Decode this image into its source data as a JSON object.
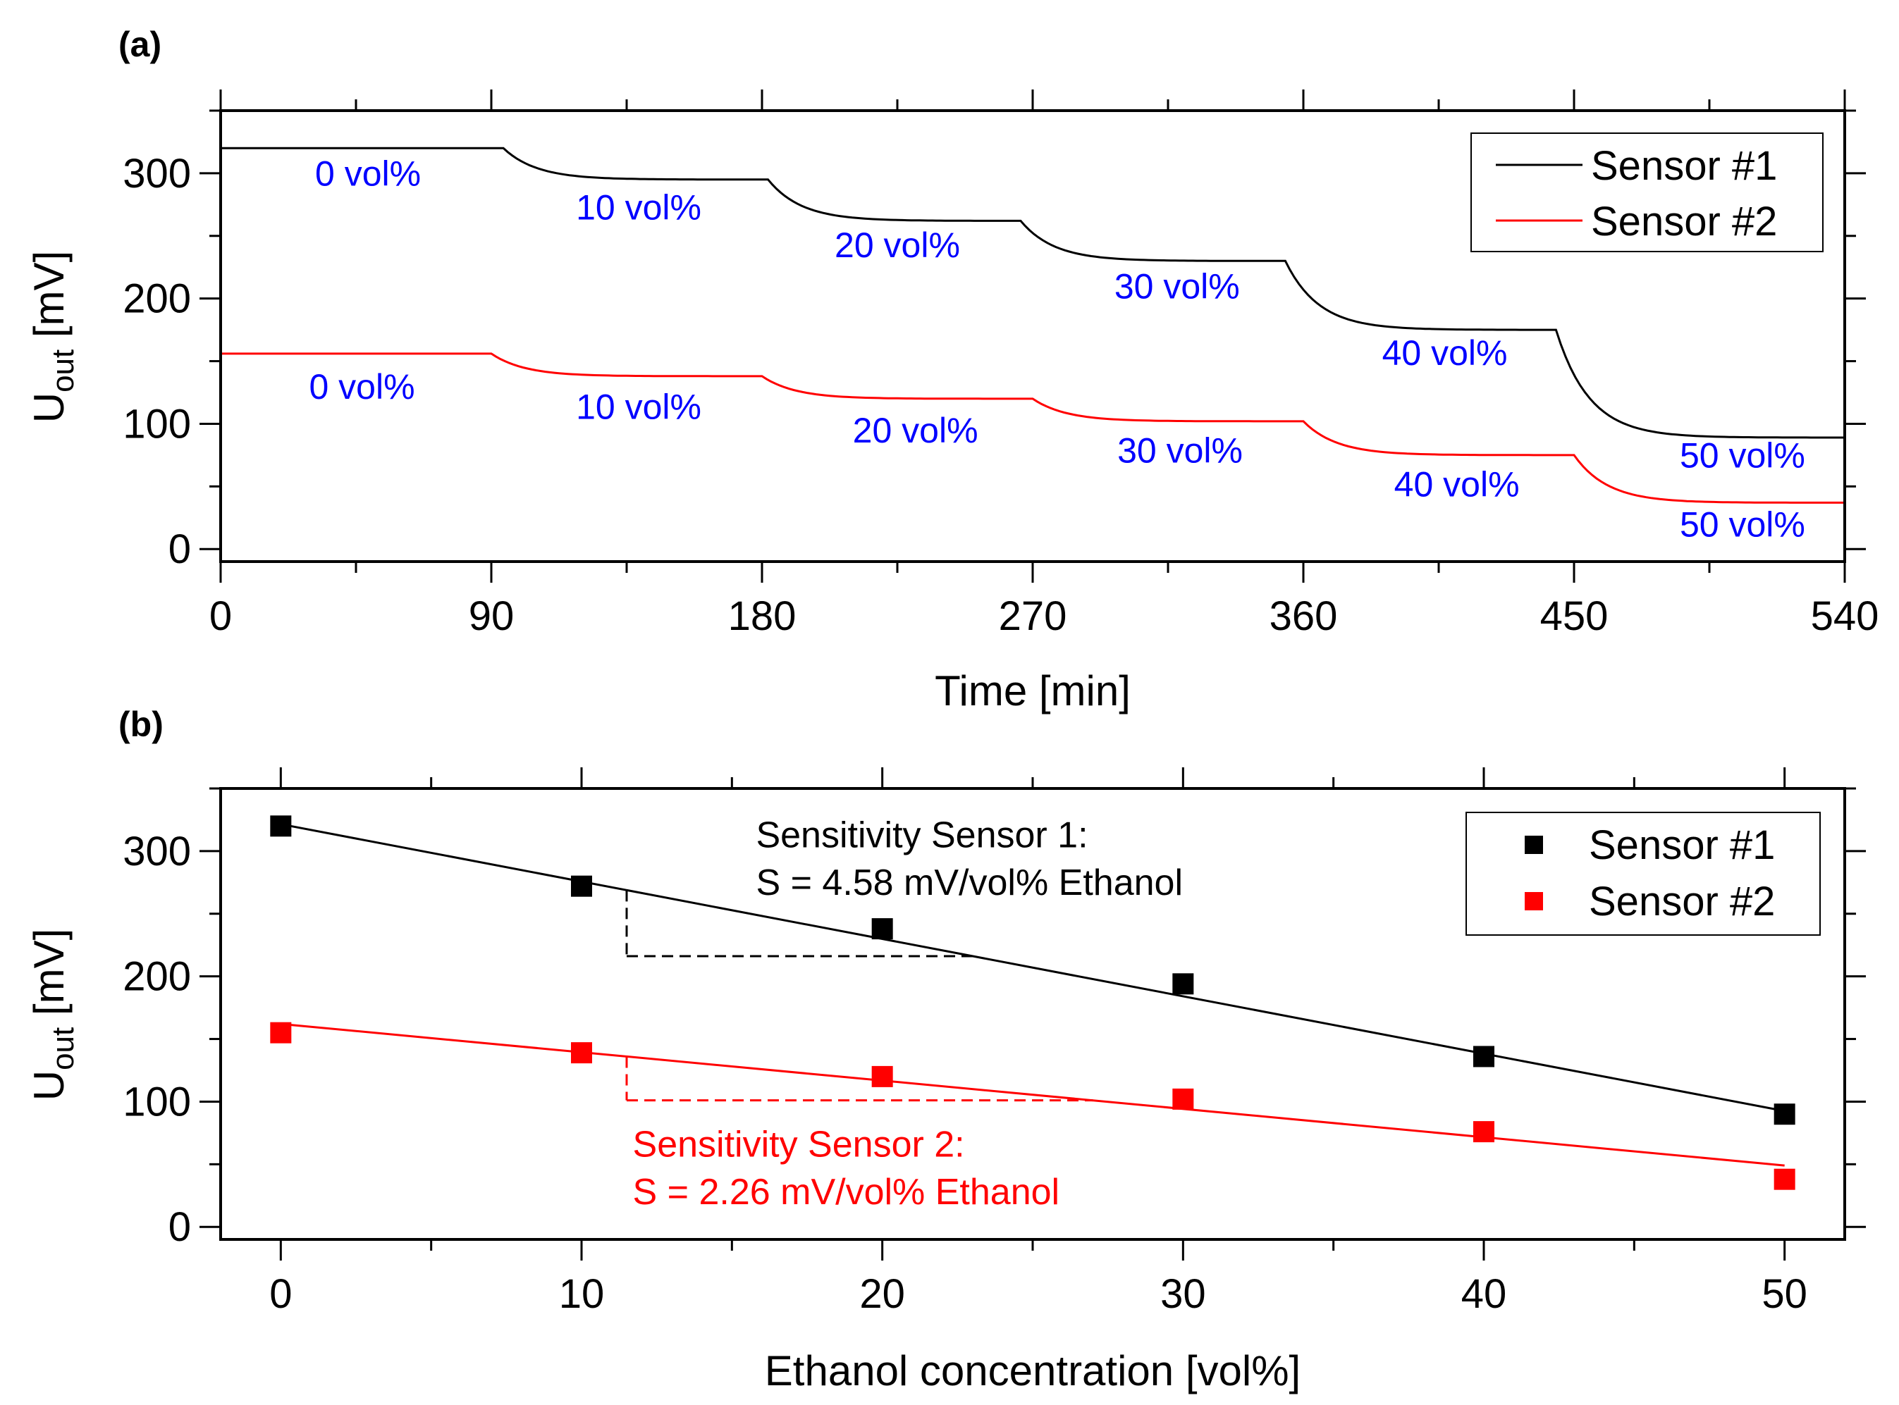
{
  "panels": {
    "a": {
      "label": "(a)"
    },
    "b": {
      "label": "(b)"
    }
  },
  "colors": {
    "axis": "#000000",
    "sensor1": "#000000",
    "sensor2": "#ff0000",
    "step_labels": "#0000ff"
  },
  "chart_data": [
    {
      "panel": "(a)",
      "type": "line",
      "xlabel": "Time [min]",
      "ylabel_main": "U",
      "ylabel_sub": "out",
      "ylabel_unit": " [mV]",
      "xlim": [
        0,
        540
      ],
      "ylim": [
        -10,
        350
      ],
      "xticks": [
        0,
        90,
        180,
        270,
        360,
        450,
        540
      ],
      "yticks": [
        0,
        100,
        200,
        300
      ],
      "x_minor_step": 45,
      "y_minor_step": 50,
      "legend": {
        "position": "top-right",
        "entries": [
          "Sensor #1",
          "Sensor #2"
        ]
      },
      "series": [
        {
          "name": "Sensor #1",
          "color": "#000000",
          "segments": [
            {
              "t_start": 0,
              "t_end": 94,
              "from": 320,
              "to": 320
            },
            {
              "t_start": 94,
              "t_end": 182,
              "from": 320,
              "to": 295
            },
            {
              "t_start": 182,
              "t_end": 266,
              "from": 295,
              "to": 262
            },
            {
              "t_start": 266,
              "t_end": 354,
              "from": 262,
              "to": 230
            },
            {
              "t_start": 354,
              "t_end": 444,
              "from": 230,
              "to": 175
            },
            {
              "t_start": 444,
              "t_end": 540,
              "from": 175,
              "to": 89
            }
          ]
        },
        {
          "name": "Sensor #2",
          "color": "#ff0000",
          "segments": [
            {
              "t_start": 0,
              "t_end": 90,
              "from": 156,
              "to": 156
            },
            {
              "t_start": 90,
              "t_end": 180,
              "from": 156,
              "to": 138
            },
            {
              "t_start": 180,
              "t_end": 270,
              "from": 138,
              "to": 120
            },
            {
              "t_start": 270,
              "t_end": 360,
              "from": 120,
              "to": 102
            },
            {
              "t_start": 360,
              "t_end": 450,
              "from": 102,
              "to": 75
            },
            {
              "t_start": 450,
              "t_end": 540,
              "from": 75,
              "to": 37
            }
          ]
        }
      ],
      "step_labels": [
        {
          "text": "0 vol%",
          "t": 49,
          "u": 290
        },
        {
          "text": "10 vol%",
          "t": 139,
          "u": 263
        },
        {
          "text": "20 vol%",
          "t": 225,
          "u": 233
        },
        {
          "text": "30 vol%",
          "t": 318,
          "u": 200
        },
        {
          "text": "40 vol%",
          "t": 407,
          "u": 147
        },
        {
          "text": "50 vol%",
          "t": 506,
          "u": 65
        },
        {
          "text": "0 vol%",
          "t": 47,
          "u": 120
        },
        {
          "text": "10 vol%",
          "t": 139,
          "u": 104
        },
        {
          "text": "20 vol%",
          "t": 231,
          "u": 85
        },
        {
          "text": "30 vol%",
          "t": 319,
          "u": 69
        },
        {
          "text": "40 vol%",
          "t": 411,
          "u": 42
        },
        {
          "text": "50 vol%",
          "t": 506,
          "u": 10
        }
      ]
    },
    {
      "panel": "(b)",
      "type": "scatter",
      "xlabel": "Ethanol concentration [vol%]",
      "ylabel_main": "U",
      "ylabel_sub": "out",
      "ylabel_unit": " [mV]",
      "xlim": [
        -2,
        52
      ],
      "ylim": [
        -10,
        350
      ],
      "xticks": [
        0,
        10,
        20,
        30,
        40,
        50
      ],
      "yticks": [
        0,
        100,
        200,
        300
      ],
      "x_minor_step": 5,
      "y_minor_step": 50,
      "legend": {
        "position": "top-right",
        "entries": [
          "Sensor #1",
          "Sensor #2"
        ]
      },
      "series": [
        {
          "name": "Sensor #1",
          "color": "#000000",
          "x": [
            0,
            10,
            20,
            30,
            40,
            50
          ],
          "y": [
            320,
            272,
            238,
            194,
            136,
            90
          ],
          "fit": {
            "x0": 0,
            "y0": 321.5,
            "x1": 50,
            "y1": 92.5
          },
          "slope_triangle": {
            "x0": 11.5,
            "x1": 23,
            "y_top": 268.8,
            "y_bottom": 216.1
          },
          "annotation": [
            "Sensitivity Sensor 1:",
            "S = 4.58 mV/vol% Ethanol"
          ],
          "annotation_pos": {
            "x": 15.8,
            "u": [
              303,
              265
            ]
          }
        },
        {
          "name": "Sensor #2",
          "color": "#ff0000",
          "x": [
            0,
            10,
            20,
            30,
            40,
            50
          ],
          "y": [
            155,
            139,
            120,
            102,
            76,
            38
          ],
          "fit": {
            "x0": 0,
            "y0": 162,
            "x1": 50,
            "y1": 49
          },
          "slope_triangle": {
            "x0": 11.5,
            "x1": 27,
            "y_top": 136,
            "y_bottom": 101
          },
          "annotation": [
            "Sensitivity Sensor 2:",
            "S = 2.26 mV/vol% Ethanol"
          ],
          "annotation_pos": {
            "x": 11.7,
            "u": [
              56,
              18
            ]
          }
        }
      ]
    }
  ]
}
